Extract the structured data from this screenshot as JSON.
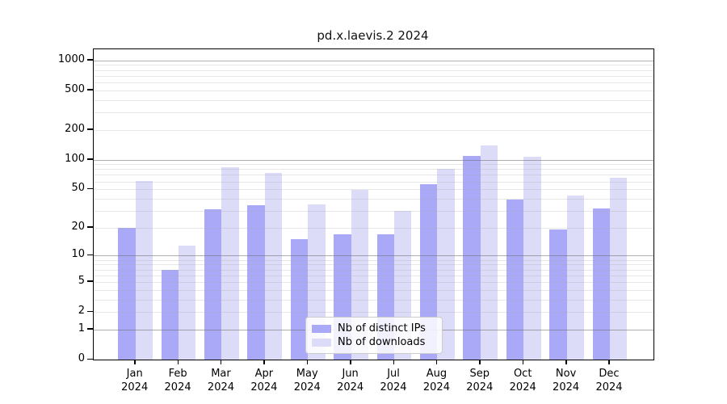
{
  "title": "pd.x.laevis.2 2024",
  "chart_data": {
    "type": "bar",
    "title": "pd.x.laevis.2 2024",
    "x_months": [
      "Jan",
      "Feb",
      "Mar",
      "Apr",
      "May",
      "Jun",
      "Jul",
      "Aug",
      "Sep",
      "Oct",
      "Nov",
      "Dec"
    ],
    "x_year": "2024",
    "categories": [
      "Jan 2024",
      "Feb 2024",
      "Mar 2024",
      "Apr 2024",
      "May 2024",
      "Jun 2024",
      "Jul 2024",
      "Aug 2024",
      "Sep 2024",
      "Oct 2024",
      "Nov 2024",
      "Dec 2024"
    ],
    "series": [
      {
        "name": "Nb of distinct IPs",
        "color": "#a9a9f8",
        "values": [
          20,
          7,
          31,
          34,
          15,
          17,
          17,
          56,
          110,
          39,
          19,
          32
        ]
      },
      {
        "name": "Nb of downloads",
        "color": "#dcdcf9",
        "values": [
          61,
          13,
          83,
          73,
          35,
          49,
          30,
          80,
          140,
          108,
          43,
          65
        ]
      }
    ],
    "y_scale": "log1p",
    "y_ticks": [
      0,
      1,
      2,
      5,
      10,
      20,
      50,
      100,
      200,
      500,
      1000
    ],
    "ylim": [
      0,
      1290
    ],
    "grid": {
      "major": [
        1,
        10,
        100,
        1000
      ],
      "minor": [
        2,
        3,
        4,
        5,
        6,
        7,
        8,
        9,
        20,
        30,
        40,
        50,
        60,
        70,
        80,
        90,
        200,
        300,
        400,
        500,
        600,
        700,
        800,
        900
      ]
    },
    "legend_position": "lower-center",
    "xlabel": "",
    "ylabel": ""
  },
  "legend": {
    "items": [
      {
        "label": "Nb of distinct IPs",
        "color": "#a9a9f8"
      },
      {
        "label": "Nb of downloads",
        "color": "#dcdcf9"
      }
    ]
  },
  "colors": {
    "ips_bar": "#a9a9f8",
    "downloads_bar": "#dcdcf9",
    "axis": "#000000",
    "major_grid": "#6e6e6e",
    "minor_grid": "#aaaaaa",
    "background": "#ffffff"
  }
}
